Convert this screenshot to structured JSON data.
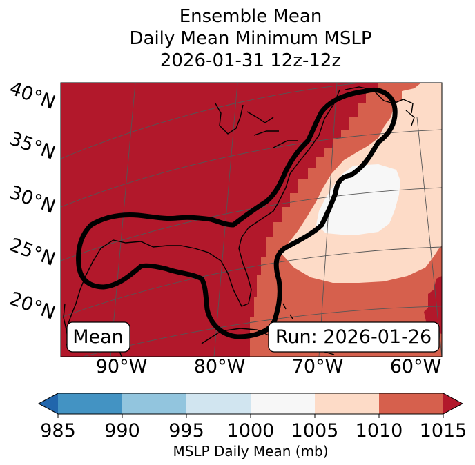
{
  "chart_data": {
    "type": "heatmap",
    "title_lines": [
      "Ensemble Mean",
      "Daily Mean Minimum MSLP",
      "2026-01-31 12z-12z"
    ],
    "lat_labels": [
      "40°N",
      "35°N",
      "30°N",
      "25°N",
      "20°N"
    ],
    "lon_labels": [
      "90°W",
      "80°W",
      "70°W",
      "60°W"
    ],
    "overlay_labels": {
      "left": "Mean",
      "right": "Run: 2026-01-26"
    },
    "colorbar": {
      "label": "MSLP Daily Mean (mb)",
      "ticks": [
        985,
        990,
        995,
        1000,
        1005,
        1010,
        1015
      ],
      "bins": [
        {
          "lo": 985,
          "hi": 990,
          "color": "#4393c3"
        },
        {
          "lo": 990,
          "hi": 995,
          "color": "#92c5de"
        },
        {
          "lo": 995,
          "hi": 1000,
          "color": "#d1e5f0"
        },
        {
          "lo": 1000,
          "hi": 1005,
          "color": "#f7f7f7"
        },
        {
          "lo": 1005,
          "hi": 1010,
          "color": "#fddbc7"
        },
        {
          "lo": 1010,
          "hi": 1015,
          "color": "#d6604d"
        }
      ],
      "under_color": "#2166ac",
      "over_color": "#b2182b",
      "extend": "both"
    },
    "colors": {
      "region_above_1015": "#b2182b",
      "region_1010_1015": "#d6604d",
      "region_1005_1010": "#fddbc7",
      "region_1000_1005": "#f7f7f7",
      "contour": "#000000",
      "coastline": "#000000",
      "gridline": "#555555"
    }
  }
}
